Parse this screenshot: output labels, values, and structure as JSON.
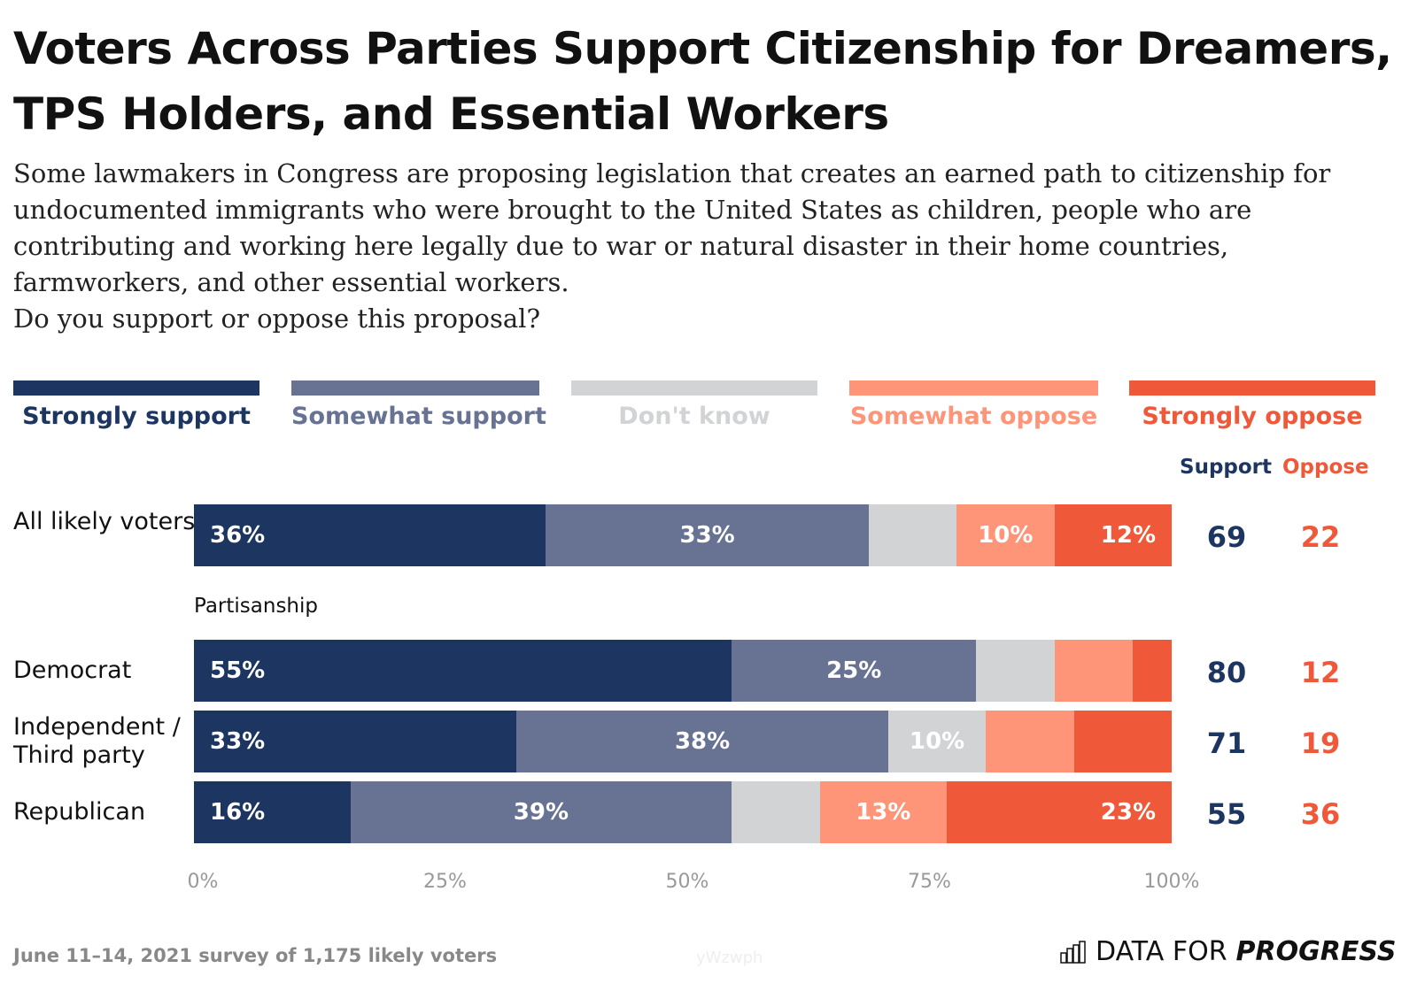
{
  "title": "Voters Across Parties Support Citizenship for Dreamers, TPS Holders, and Essential Workers",
  "subtitle": "Some lawmakers in Congress are proposing legislation that creates an earned path to citizenship for undocumented immigrants who were brought to the United States as children, people who are contributing and working here legally due to war or natural disaster in their home countries, farmworkers, and other essential workers.",
  "question": "Do you support or oppose this proposal?",
  "legend": [
    {
      "label": "Strongly support",
      "color": "#1c3661"
    },
    {
      "label": "Somewhat support",
      "color": "#687394"
    },
    {
      "label": "Don't know",
      "color": "#d2d3d5"
    },
    {
      "label": "Somewhat oppose",
      "color": "#fe9478"
    },
    {
      "label": "Strongly oppose",
      "color": "#f0583a"
    }
  ],
  "column_headers": {
    "support": "Support",
    "oppose": "Oppose"
  },
  "section_label": "Partisanship",
  "footnote": "June 11–14, 2021 survey of 1,175 likely voters",
  "watermark": "yWzwph",
  "logo": {
    "text_light": "DATA FOR",
    "text_bold": "PROGRESS"
  },
  "chart_data": {
    "type": "bar",
    "orientation": "horizontal",
    "stacked": true,
    "categories": [
      "All likely voters",
      "Democrat",
      "Independent / Third party",
      "Republican"
    ],
    "series": [
      {
        "name": "Strongly support",
        "values": [
          36,
          55,
          33,
          16
        ],
        "labels": [
          "36%",
          "55%",
          "33%",
          "16%"
        ]
      },
      {
        "name": "Somewhat support",
        "values": [
          33,
          25,
          38,
          39
        ],
        "labels": [
          "33%",
          "25%",
          "38%",
          "39%"
        ]
      },
      {
        "name": "Don't know",
        "values": [
          9,
          8,
          10,
          9
        ],
        "labels": [
          "",
          "",
          "10%",
          ""
        ]
      },
      {
        "name": "Somewhat oppose",
        "values": [
          10,
          8,
          9,
          13
        ],
        "labels": [
          "10%",
          "",
          "",
          "13%"
        ]
      },
      {
        "name": "Strongly oppose",
        "values": [
          12,
          4,
          10,
          23
        ],
        "labels": [
          "12%",
          "",
          "",
          "23%"
        ]
      }
    ],
    "support_totals": [
      69,
      80,
      71,
      55
    ],
    "oppose_totals": [
      22,
      12,
      19,
      36
    ],
    "x_ticks": [
      "0%",
      "25%",
      "50%",
      "75%",
      "100%"
    ],
    "xlim": [
      0,
      100
    ],
    "grid": false,
    "legend_position": "top"
  }
}
